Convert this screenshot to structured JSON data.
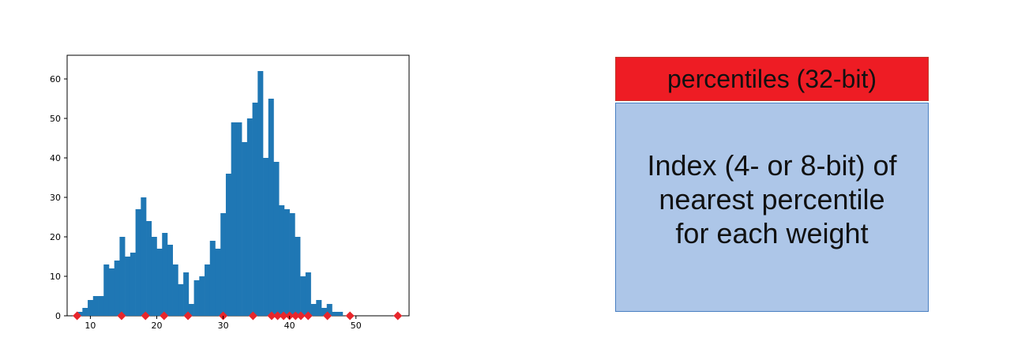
{
  "chart_data": {
    "type": "bar",
    "title": "",
    "xlabel": "",
    "ylabel": "",
    "xlim": [
      6.5,
      58
    ],
    "ylim": [
      0,
      66
    ],
    "xticks": [
      10,
      20,
      30,
      40,
      50
    ],
    "yticks": [
      0,
      10,
      20,
      30,
      40,
      50,
      60
    ],
    "bar_color": "#1f77b4",
    "marker_color": "#e8262b",
    "marker_shape": "diamond",
    "grid": false,
    "bins": {
      "start": 8,
      "width": 0.8,
      "counts": [
        1,
        2,
        4,
        5,
        5,
        13,
        12,
        14,
        20,
        15,
        16,
        27,
        30,
        24,
        20,
        17,
        21,
        18,
        13,
        8,
        11,
        3,
        9,
        10,
        13,
        19,
        17,
        26,
        36,
        49,
        49,
        44,
        50,
        54,
        62,
        40,
        55,
        39,
        28,
        27,
        26,
        20,
        10,
        11,
        3,
        4,
        2,
        3,
        1,
        1
      ]
    },
    "percentile_markers": [
      8,
      14.7,
      18.3,
      21.1,
      24.7,
      30,
      34.5,
      37.3,
      38.2,
      39.1,
      40,
      40.9,
      41.7,
      42.8,
      45.7,
      49.1,
      56.3
    ]
  },
  "diagram": {
    "header_text": "percentiles (32-bit)",
    "body_text": "Index (4- or 8-bit) of\nnearest percentile\nfor each weight",
    "header_color": "#ee1c24",
    "body_color": "#adc6e8"
  }
}
